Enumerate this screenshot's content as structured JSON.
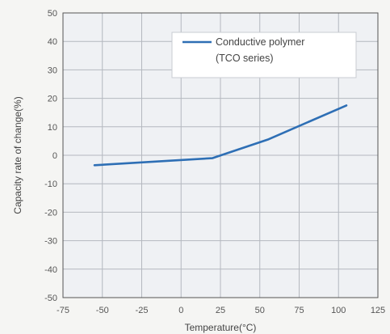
{
  "chart_data": {
    "type": "line",
    "xlabel": "Temperature(°C)",
    "ylabel": "Capacity rate of change(%)",
    "xlim": [
      -75,
      125
    ],
    "ylim": [
      -50,
      50
    ],
    "x_ticks": [
      -75,
      -50,
      -25,
      0,
      25,
      50,
      75,
      100,
      125
    ],
    "y_ticks": [
      50,
      40,
      30,
      20,
      10,
      0,
      -10,
      -20,
      -30,
      -40,
      -50
    ],
    "x_tick_labels": [
      "-75",
      "-50",
      "-25",
      "0",
      "25",
      "50",
      "75",
      "100",
      "125"
    ],
    "y_tick_labels": [
      "50",
      "40",
      "30",
      "20",
      "10",
      "0",
      "-10",
      "-20",
      "-30",
      "-40",
      "-50"
    ],
    "grid": true,
    "legend_position": "top-right",
    "legend_lines": [
      "Conductive polymer",
      "(TCO series)"
    ],
    "series": [
      {
        "name": "Conductive polymer (TCO series)",
        "color": "#2e6fb5",
        "x": [
          -55,
          20,
          55,
          105
        ],
        "y": [
          -3.5,
          -1,
          5.5,
          17.5
        ]
      }
    ],
    "colors": {
      "plot_background": "#eff1f4",
      "grid": "#b4b8bf",
      "frame": "#555555",
      "line": "#2e6fb5"
    }
  }
}
